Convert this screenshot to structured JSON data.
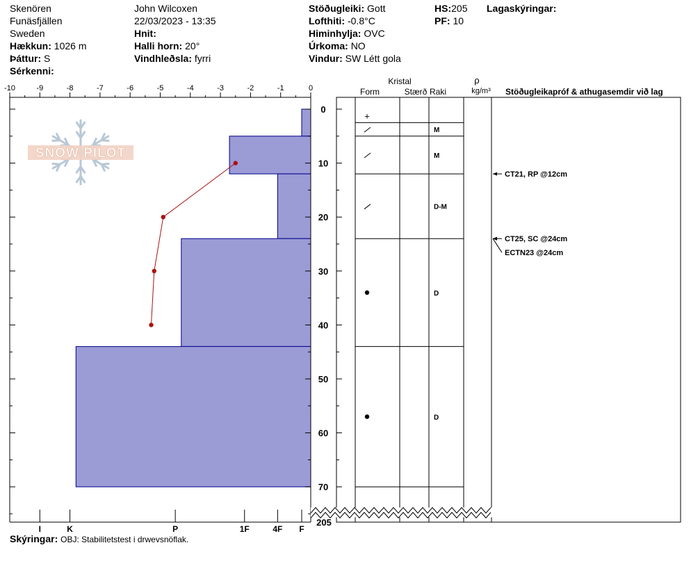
{
  "header": {
    "location": "Skenören",
    "region": "Funäsfjällen",
    "country": "Sweden",
    "elevation_label": "Hækkun:",
    "elevation": "1026 m",
    "aspect_label": "Þáttur:",
    "aspect": "S",
    "features_label": "Sérkenni:",
    "observer": "John Wilcoxen",
    "datetime": "22/03/2023 - 13:35",
    "coords_label": "Hnit:",
    "slope_label": "Halli horn:",
    "slope": "20°",
    "wind_loading_label": "Vindhleðsla:",
    "wind_loading": "fyrri",
    "stability_label": "Stöðugleiki:",
    "stability": "Gott",
    "air_temp_label": "Lofthiti:",
    "air_temp": "-0.8°C",
    "sky_label": "Himinhylja:",
    "sky": "OVC",
    "precip_label": "Úrkoma:",
    "precip": "NO",
    "wind_label": "Vindur:",
    "wind": "SW Létt gola",
    "hs_label": "HS:",
    "hs": "205",
    "pf_label": "PF:",
    "pf": "10",
    "layer_notes_label": "Lagaskýringar:"
  },
  "logo_text": "SNOW PILOT",
  "table_headers": {
    "crystal": "Kristal",
    "form": "Form",
    "size": "Stærð",
    "moisture": "Raki",
    "density_symbol": "ρ",
    "density_unit": "kg/m³",
    "comments": "Stöðugleikapróf & athugasemdir við lag"
  },
  "footer": {
    "legend_label": "Skýringar:",
    "legend_text": "OBJ: Stabilitetstest i drwevsnöflak."
  },
  "colors": {
    "hardness_fill": "#9b9bd6",
    "hardness_stroke": "#00008b",
    "temp_line": "#aa1111"
  },
  "chart_data": {
    "type": "snow-profile",
    "temp_axis": {
      "ticks": [
        -10,
        -9,
        -8,
        -7,
        -6,
        -5,
        -4,
        -3,
        -2,
        -1,
        0
      ],
      "labels": [
        "-10",
        "-9",
        "-8",
        "-7",
        "-6",
        "-5",
        "-4",
        "-3",
        "-2",
        "-1",
        "0"
      ],
      "range": [
        -10,
        0
      ]
    },
    "depth_axis": {
      "ticks": [
        0,
        10,
        20,
        30,
        40,
        50,
        60,
        70
      ],
      "labels": [
        "0",
        "10",
        "20",
        "30",
        "40",
        "50",
        "60",
        "70"
      ],
      "bottom_label": "205",
      "range": [
        0,
        75
      ]
    },
    "hardness_axis": {
      "labels": [
        "I",
        "K",
        "P",
        "1F",
        "4F",
        "F"
      ],
      "values": [
        -9,
        -8,
        -4.5,
        -2.2,
        -1.1,
        -0.3
      ]
    },
    "temperature_profile": [
      {
        "depth": 10,
        "temp": -2.5
      },
      {
        "depth": 20,
        "temp": -4.9
      },
      {
        "depth": 30,
        "temp": -5.2
      },
      {
        "depth": 40,
        "temp": -5.3
      }
    ],
    "layers": [
      {
        "top": 0,
        "bottom": 5,
        "hardness": -0.3,
        "form": "+",
        "size": "",
        "moisture": ""
      },
      {
        "top": 5,
        "bottom": 12,
        "hardness": -2.7,
        "form": "/",
        "size": "",
        "moisture": "M"
      },
      {
        "top": 12,
        "bottom": 24,
        "hardness": -1.1,
        "form": "/",
        "size": "",
        "moisture": "D-M"
      },
      {
        "top": 24,
        "bottom": 44,
        "hardness": -4.3,
        "form": "•",
        "size": "",
        "moisture": "D"
      },
      {
        "top": 44,
        "bottom": 70,
        "hardness": -7.8,
        "form": "•",
        "size": "",
        "moisture": "D"
      }
    ],
    "form_rows": [
      {
        "top": 0,
        "bottom": 2.5,
        "form": "+",
        "moisture": ""
      },
      {
        "top": 2.5,
        "bottom": 5,
        "form": "/",
        "moisture": "M"
      },
      {
        "top": 5,
        "bottom": 12,
        "form": "/",
        "moisture": "M"
      },
      {
        "top": 12,
        "bottom": 24,
        "form": "/",
        "moisture": "D-M"
      },
      {
        "top": 24,
        "bottom": 44,
        "form": "•",
        "moisture": "D"
      },
      {
        "top": 44,
        "bottom": 70,
        "form": "•",
        "moisture": "D"
      }
    ],
    "stability_tests": [
      {
        "depth": 12,
        "text": "CT21, RP @12cm"
      },
      {
        "depth": 24,
        "text": "CT25, SC @24cm"
      },
      {
        "depth": 24,
        "text": "ECTN23 @24cm"
      }
    ]
  }
}
